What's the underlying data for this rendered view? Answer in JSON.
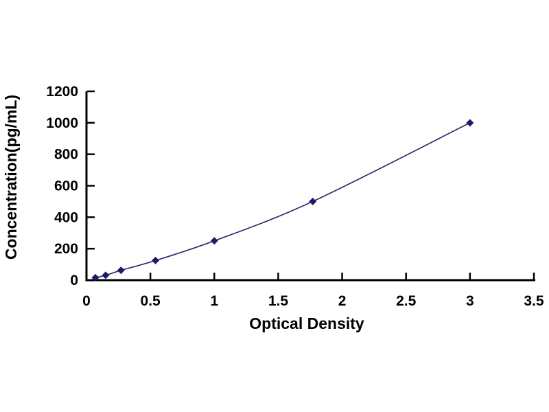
{
  "figure": {
    "kind": "standard-curve-plot",
    "background": "#ffffff"
  },
  "chart_data": {
    "type": "line",
    "title": "",
    "xlabel": "Optical Density",
    "ylabel": "Concentration(pg/mL)",
    "series": [
      {
        "name": "standard-curve",
        "x": [
          0.07,
          0.15,
          0.27,
          0.54,
          1.0,
          1.77,
          3.0
        ],
        "y": [
          15.6,
          31.2,
          62.5,
          125,
          250,
          500,
          1000
        ]
      }
    ],
    "xlim": [
      0,
      3.5
    ],
    "ylim": [
      0,
      1200
    ],
    "x_ticks": [
      0,
      0.5,
      1,
      1.5,
      2,
      2.5,
      3,
      3.5
    ],
    "x_tick_labels": [
      "0",
      "0.5",
      "1",
      "1.5",
      "2",
      "2.5",
      "3",
      "3.5"
    ],
    "y_ticks": [
      0,
      200,
      400,
      600,
      800,
      1000,
      1200
    ],
    "y_tick_labels": [
      "0",
      "200",
      "400",
      "600",
      "800",
      "1000",
      "1200"
    ],
    "grid": false,
    "legend": false,
    "marker": "diamond",
    "colors": {
      "line": "#2b2b6e",
      "marker": "#1b1b66",
      "axis": "#000000",
      "text": "#000000",
      "background": "#ffffff"
    }
  }
}
